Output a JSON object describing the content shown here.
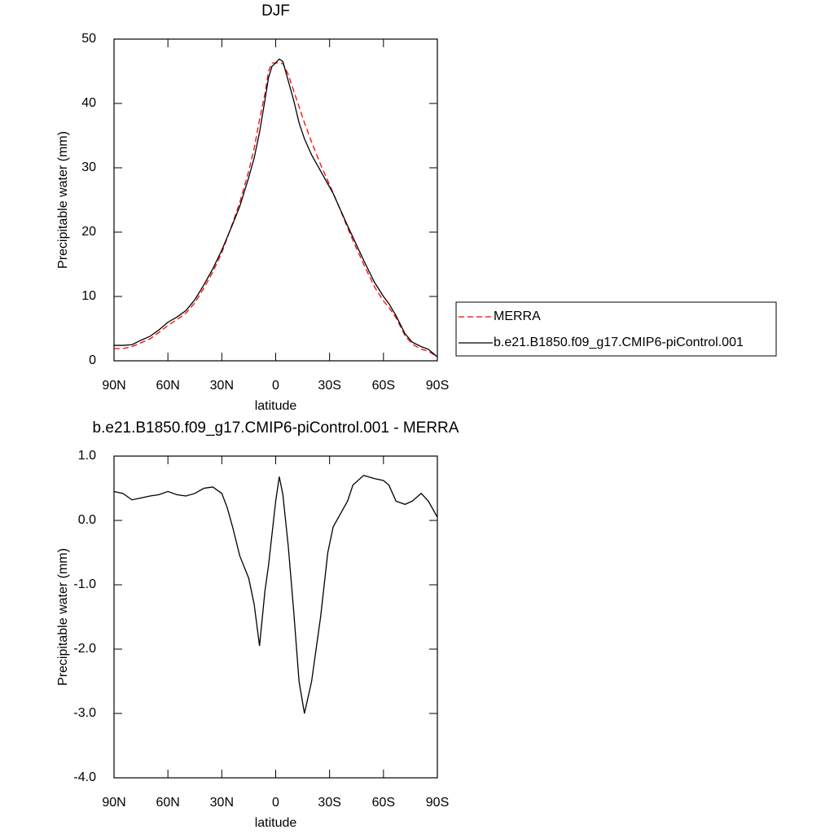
{
  "chart_data": [
    {
      "type": "line",
      "title": "DJF",
      "xlabel": "latitude",
      "ylabel": "Precipitable water (mm)",
      "x": [
        90,
        85,
        80,
        75,
        70,
        65,
        60,
        55,
        50,
        45,
        40,
        35,
        30,
        27,
        24,
        20,
        15,
        12,
        9,
        6,
        4,
        2,
        0,
        -2,
        -4,
        -7,
        -10,
        -13,
        -16,
        -20,
        -25,
        -29,
        -32,
        -36,
        -40,
        -43,
        -49,
        -55,
        -60,
        -63,
        -67,
        -72,
        -76,
        -81,
        -85,
        -90
      ],
      "xlim": [
        90,
        -90
      ],
      "xticks": [
        {
          "value": 90,
          "label": "90N"
        },
        {
          "value": 60,
          "label": "60N"
        },
        {
          "value": 30,
          "label": "30N"
        },
        0,
        {
          "value": -30,
          "label": "30S"
        },
        {
          "value": -60,
          "label": "60S"
        },
        {
          "value": -90,
          "label": "90S"
        }
      ],
      "ylim": [
        0,
        50
      ],
      "yticks": [
        0,
        10,
        20,
        30,
        40,
        50
      ],
      "legend": "right",
      "series": [
        {
          "name": "MERRA",
          "color": "#ff0000",
          "linestyle": "dashed",
          "values": [
            1.9,
            1.9,
            2.2,
            2.8,
            3.4,
            4.4,
            5.5,
            6.4,
            7.4,
            9.0,
            11.3,
            13.8,
            16.8,
            19.1,
            21.4,
            24.6,
            29.5,
            33.0,
            37.5,
            41.5,
            45.0,
            46.3,
            46.3,
            46.3,
            46.2,
            44.5,
            42.0,
            39.5,
            37.0,
            34.0,
            30.5,
            28.0,
            26.1,
            23.4,
            20.7,
            18.7,
            15.0,
            11.5,
            9.3,
            8.3,
            6.7,
            3.9,
            2.6,
            1.8,
            1.5,
            0.6
          ]
        },
        {
          "name": "b.e21.B1850.f09_g17.CMIP6-piControl.001",
          "color": "#000000",
          "linestyle": "solid",
          "values": [
            2.4,
            2.4,
            2.5,
            3.2,
            3.8,
            4.8,
            6.0,
            6.8,
            7.8,
            9.5,
            11.8,
            14.3,
            17.2,
            19.2,
            21.2,
            24.0,
            28.5,
            31.5,
            35.5,
            40.5,
            44.0,
            45.8,
            46.3,
            46.9,
            46.5,
            43.5,
            40.5,
            37.0,
            34.5,
            32.0,
            29.5,
            27.5,
            26.0,
            23.5,
            21.0,
            19.2,
            15.6,
            12.2,
            10.0,
            8.9,
            7.0,
            4.2,
            2.9,
            2.2,
            1.8,
            0.6
          ]
        }
      ]
    },
    {
      "type": "line",
      "title": "b.e21.B1850.f09_g17.CMIP6-piControl.001 - MERRA",
      "xlabel": "latitude",
      "ylabel": "Precipitable water (mm)",
      "x": [
        90,
        85,
        80,
        75,
        70,
        65,
        60,
        55,
        50,
        45,
        40,
        35,
        30,
        27,
        24,
        20,
        15,
        12,
        9,
        6,
        4,
        2,
        0,
        -2,
        -4,
        -7,
        -10,
        -13,
        -16,
        -20,
        -25,
        -29,
        -32,
        -36,
        -40,
        -43,
        -49,
        -55,
        -60,
        -63,
        -67,
        -72,
        -76,
        -81,
        -85,
        -90
      ],
      "xlim": [
        90,
        -90
      ],
      "xticks": [
        {
          "value": 90,
          "label": "90N"
        },
        {
          "value": 60,
          "label": "60N"
        },
        {
          "value": 30,
          "label": "30N"
        },
        0,
        {
          "value": -30,
          "label": "30S"
        },
        {
          "value": -60,
          "label": "60S"
        },
        {
          "value": -90,
          "label": "90S"
        }
      ],
      "ylim": [
        -4,
        1
      ],
      "yticks": [
        {
          "value": -4,
          "label": "-4.0"
        },
        {
          "value": -3,
          "label": "-3.0"
        },
        {
          "value": -2,
          "label": "-2.0"
        },
        {
          "value": -1,
          "label": "-1.0"
        },
        {
          "value": 0,
          "label": "0.0"
        },
        {
          "value": 1,
          "label": "1.0"
        }
      ],
      "series": [
        {
          "color": "#000000",
          "linestyle": "solid",
          "values": [
            0.45,
            0.42,
            0.32,
            0.35,
            0.38,
            0.4,
            0.45,
            0.4,
            0.38,
            0.42,
            0.5,
            0.52,
            0.42,
            0.2,
            -0.1,
            -0.55,
            -0.9,
            -1.3,
            -1.95,
            -1.1,
            -0.7,
            -0.2,
            0.3,
            0.68,
            0.4,
            -0.4,
            -1.4,
            -2.5,
            -3.0,
            -2.5,
            -1.5,
            -0.5,
            -0.1,
            0.1,
            0.3,
            0.55,
            0.7,
            0.65,
            0.62,
            0.55,
            0.3,
            0.25,
            0.3,
            0.42,
            0.3,
            0.05
          ]
        }
      ]
    }
  ]
}
